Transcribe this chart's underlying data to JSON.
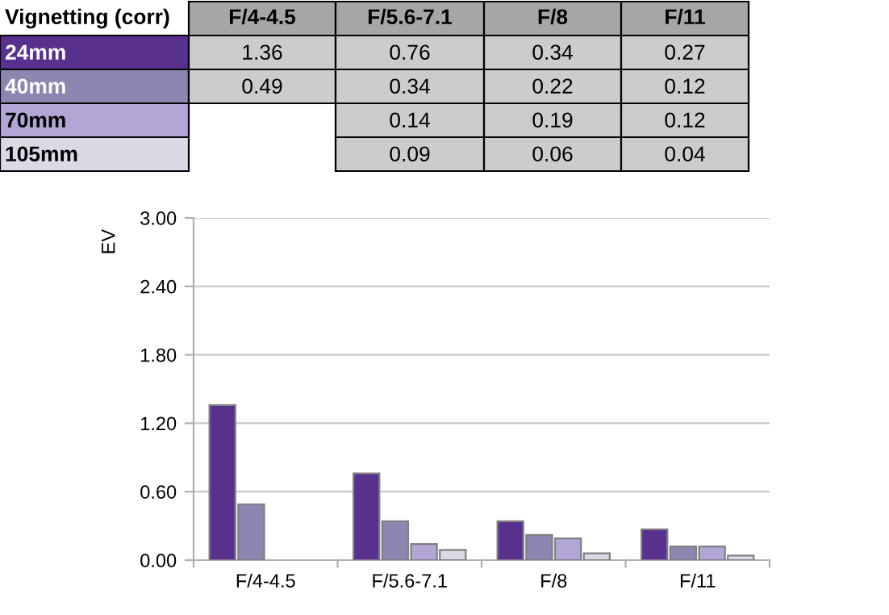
{
  "chart_data": {
    "type": "bar",
    "title": "Vignetting (corr)",
    "ylabel": "EV",
    "categories": [
      "F/4-4.5",
      "F/5.6-7.1",
      "F/8",
      "F/11"
    ],
    "series": [
      {
        "name": "24mm",
        "color": "#58318f",
        "values": [
          1.36,
          0.76,
          0.34,
          0.27
        ]
      },
      {
        "name": "40mm",
        "color": "#8c87b0",
        "values": [
          0.49,
          0.34,
          0.22,
          0.12
        ]
      },
      {
        "name": "70mm",
        "color": "#b2a6d6",
        "values": [
          null,
          0.14,
          0.19,
          0.12
        ]
      },
      {
        "name": "105mm",
        "color": "#dcd9e6",
        "values": [
          null,
          0.09,
          0.06,
          0.04
        ]
      }
    ],
    "ylim": [
      0,
      3
    ],
    "yticks": [
      {
        "value": 0,
        "label": "0.00"
      },
      {
        "value": 0.6,
        "label": "0.60"
      },
      {
        "value": 1.2,
        "label": "1.20"
      },
      {
        "value": 1.8,
        "label": "1.80"
      },
      {
        "value": 2.4,
        "label": "2.40"
      },
      {
        "value": 3,
        "label": "3.00"
      }
    ],
    "grid": "y",
    "legend": false,
    "data_labels": true
  }
}
